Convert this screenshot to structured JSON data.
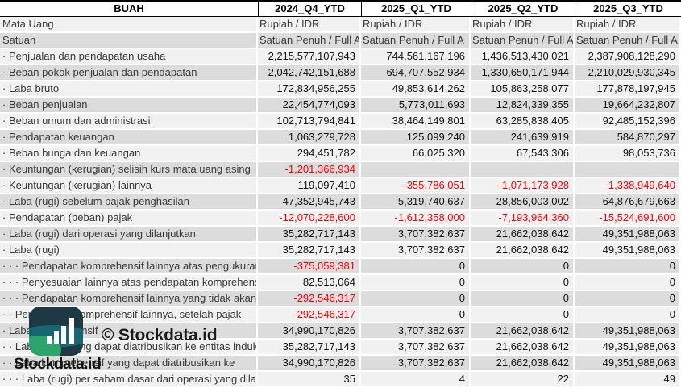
{
  "table": {
    "header": {
      "label": "BUAH",
      "columns": [
        "2024_Q4_YTD",
        "2025_Q1_YTD",
        "2025_Q2_YTD",
        "2025_Q3_YTD"
      ]
    },
    "meta_rows": [
      {
        "label": "Mata Uang",
        "values": [
          "Rupiah / IDR",
          "Rupiah / IDR",
          "Rupiah / IDR",
          "Rupiah / IDR"
        ]
      },
      {
        "label": "Satuan",
        "values": [
          "Satuan Penuh / Full A",
          "Satuan Penuh / Full A",
          "Satuan Penuh / Full A",
          "Satuan Penuh / Full A"
        ]
      }
    ],
    "data_rows": [
      {
        "label": "· Penjualan dan pendapatan usaha",
        "values": [
          "2,215,577,107,943",
          "744,561,167,196",
          "1,436,513,430,021",
          "2,387,908,128,290"
        ]
      },
      {
        "label": "· Beban pokok penjualan dan pendapatan",
        "values": [
          "2,042,742,151,688",
          "694,707,552,934",
          "1,330,650,171,944",
          "2,210,029,930,345"
        ]
      },
      {
        "label": "· Laba bruto",
        "values": [
          "172,834,956,255",
          "49,853,614,262",
          "105,863,258,077",
          "177,878,197,945"
        ]
      },
      {
        "label": "· Beban penjualan",
        "values": [
          "22,454,774,093",
          "5,773,011,693",
          "12,824,339,355",
          "19,664,232,807"
        ]
      },
      {
        "label": "· Beban umum dan administrasi",
        "values": [
          "102,713,794,841",
          "38,464,149,801",
          "63,285,838,405",
          "92,485,152,396"
        ]
      },
      {
        "label": "· Pendapatan keuangan",
        "values": [
          "1,063,279,728",
          "125,099,240",
          "241,639,919",
          "584,870,297"
        ]
      },
      {
        "label": "· Beban bunga dan keuangan",
        "values": [
          "294,451,782",
          "66,025,320",
          "67,543,306",
          "98,053,736"
        ]
      },
      {
        "label": "· Keuntungan (kerugian) selisih kurs mata uang asing",
        "values": [
          "-1,201,366,934",
          "",
          "",
          ""
        ]
      },
      {
        "label": "· Keuntungan (kerugian) lainnya",
        "values": [
          "119,097,410",
          "-355,786,051",
          "-1,071,173,928",
          "-1,338,949,640"
        ]
      },
      {
        "label": "· Laba (rugi) sebelum pajak penghasilan",
        "values": [
          "47,352,945,743",
          "5,319,740,637",
          "28,856,003,002",
          "64,876,679,663"
        ]
      },
      {
        "label": "· Pendapatan (beban) pajak",
        "values": [
          "-12,070,228,600",
          "-1,612,358,000",
          "-7,193,964,360",
          "-15,524,691,600"
        ]
      },
      {
        "label": "· Laba (rugi) dari operasi yang dilanjutkan",
        "values": [
          "35,282,717,143",
          "3,707,382,637",
          "21,662,038,642",
          "49,351,988,063"
        ]
      },
      {
        "label": "· Laba (rugi)",
        "values": [
          "35,282,717,143",
          "3,707,382,637",
          "21,662,038,642",
          "49,351,988,063"
        ]
      },
      {
        "label": "· · · Pendapatan komprehensif lainnya atas pengukuran",
        "values": [
          "-375,059,381",
          "0",
          "0",
          "0"
        ]
      },
      {
        "label": "· · · Penyesuaian lainnya atas pendapatan komprehensif",
        "values": [
          "82,513,064",
          "0",
          "0",
          "0"
        ]
      },
      {
        "label": "· · · Pendapatan komprehensif lainnya yang tidak akan",
        "values": [
          "-292,546,317",
          "0",
          "0",
          "0"
        ]
      },
      {
        "label": "· · Pendapatan komprehensif lainnya, setelah pajak",
        "values": [
          "-292,546,317",
          "0",
          "0",
          "0"
        ]
      },
      {
        "label": "· Laba komprehensif",
        "values": [
          "34,990,170,826",
          "3,707,382,637",
          "21,662,038,642",
          "49,351,988,063"
        ]
      },
      {
        "label": "· · Laba (rugi) yang dapat diatribusikan ke entitas induk",
        "values": [
          "35,282,717,143",
          "3,707,382,637",
          "21,662,038,642",
          "49,351,988,063"
        ]
      },
      {
        "label": "· · Laba komprehensif yang dapat diatribusikan ke",
        "values": [
          "34,990,170,826",
          "3,707,382,637",
          "21,662,038,642",
          "49,351,988,063"
        ]
      },
      {
        "label": "· · · Laba (rugi) per saham dasar dari operasi yang dilanjutkan",
        "values": [
          "35",
          "4",
          "22",
          "49"
        ]
      }
    ]
  },
  "watermarks": {
    "center_text": "© Stockdata.id",
    "logo_caption": "Stockdata.id",
    "logo_icon": "bar-chart-icon"
  },
  "colors": {
    "negative": "#ff0000",
    "row_light": "#f1f1f1",
    "row_dark": "#dcdcdc",
    "header_border": "#000000",
    "logo_navy": "#1e3943",
    "logo_teal": "#15696e",
    "logo_green": "#2ca56c",
    "logo_bars": "#ffffff"
  }
}
